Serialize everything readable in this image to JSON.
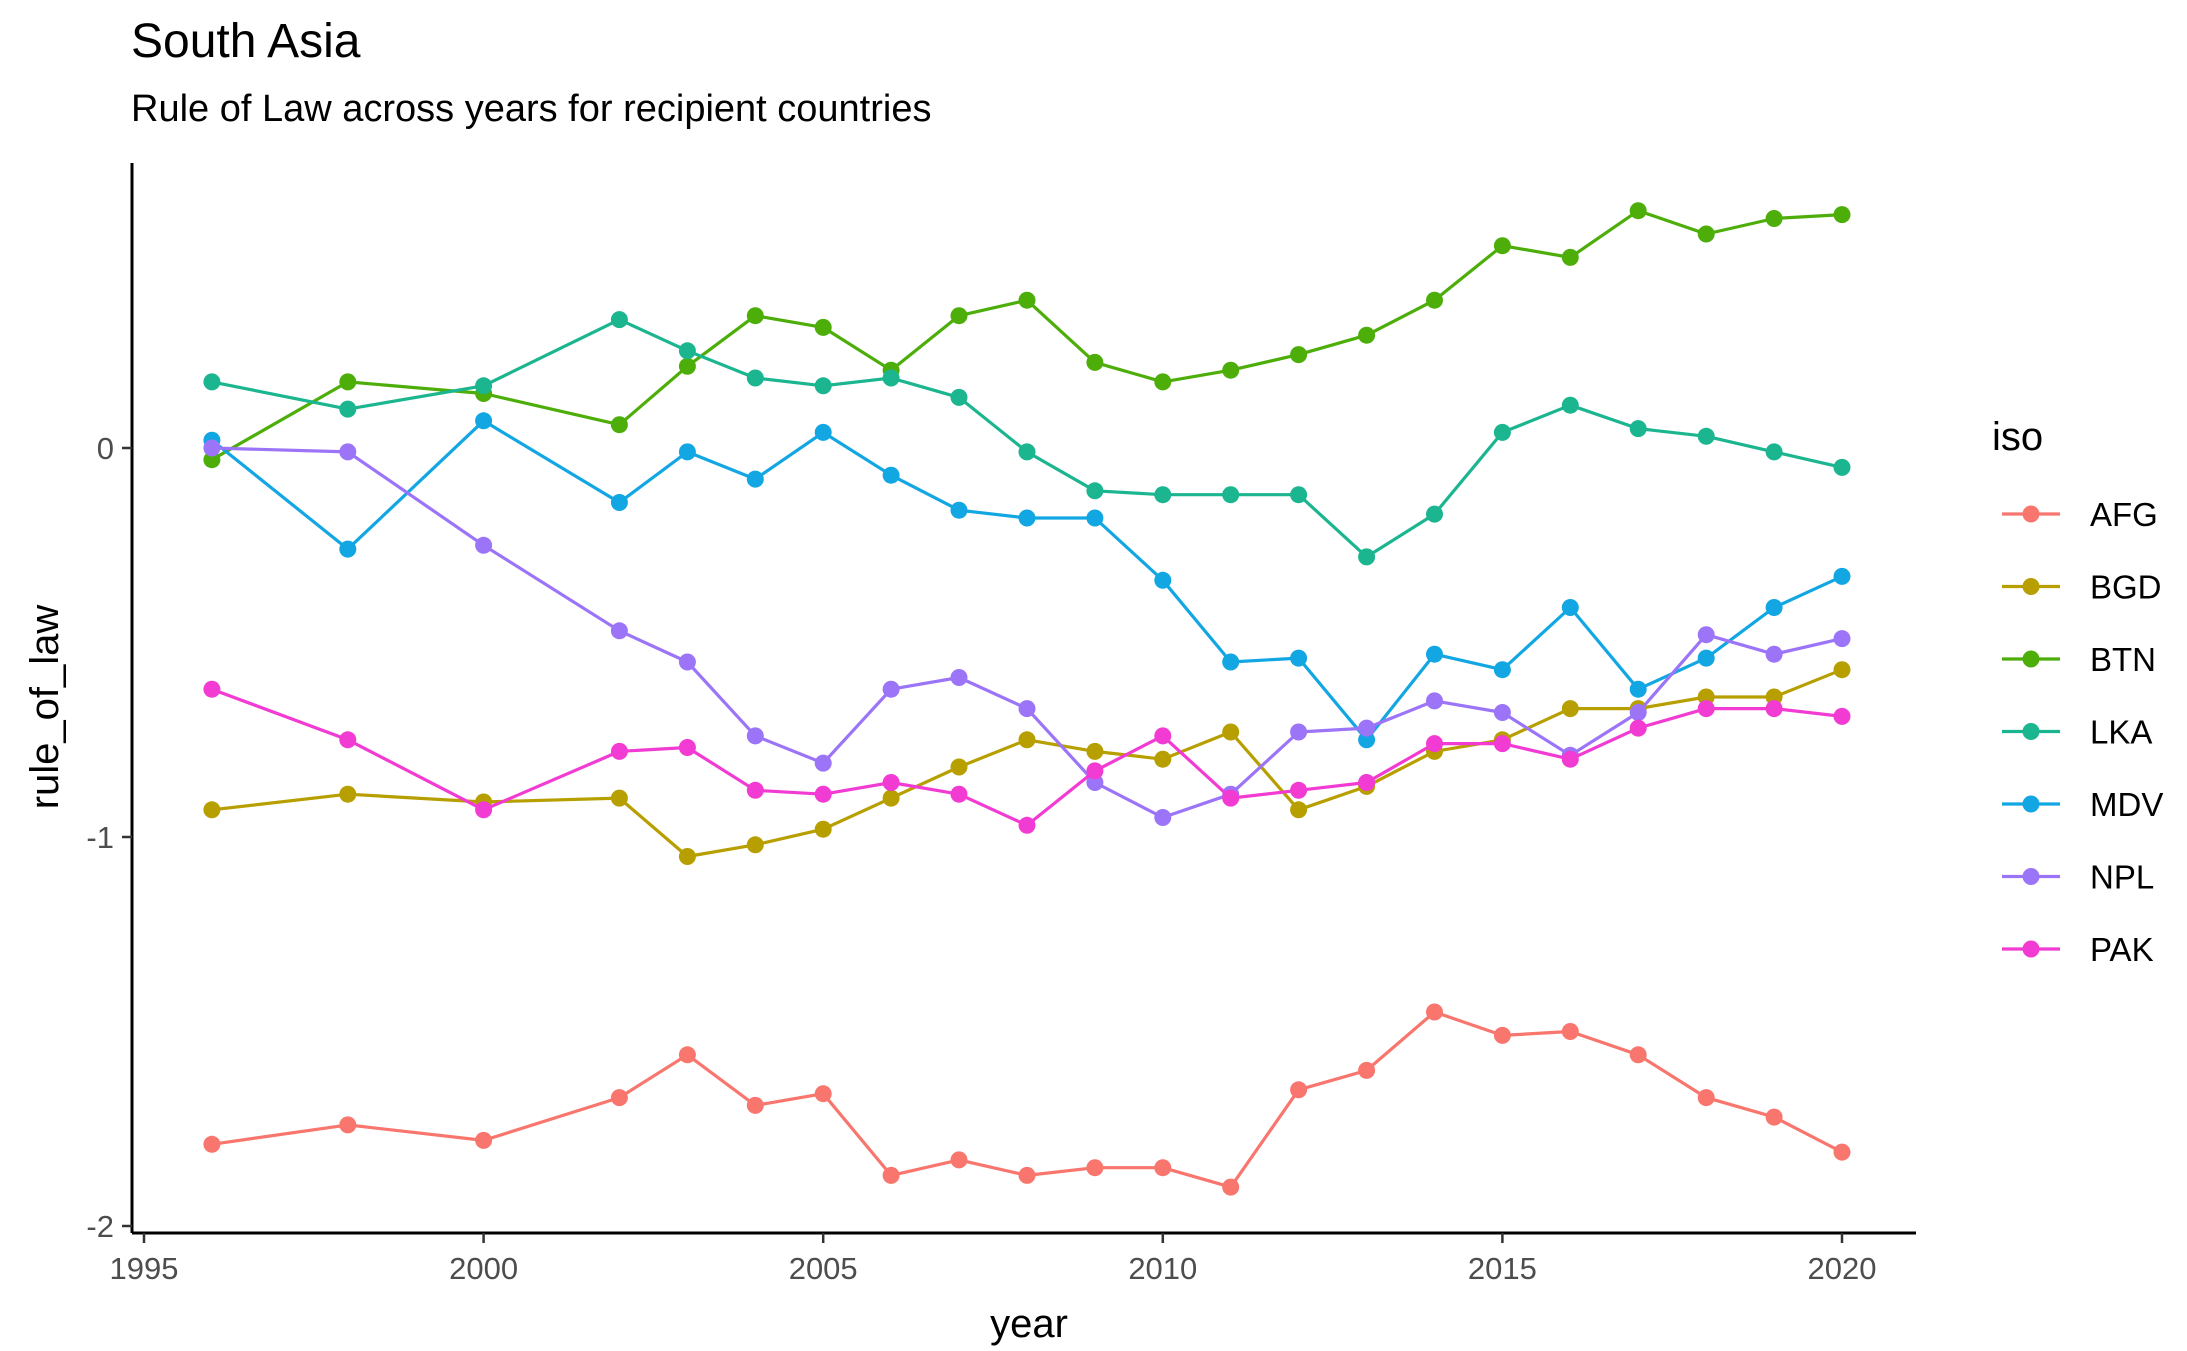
{
  "chart_data": {
    "type": "line",
    "title": "South Asia",
    "subtitle": "Rule of Law across years for recipient countries",
    "xlabel": "year",
    "ylabel": "rule_of_law",
    "xlim": [
      1995,
      2020
    ],
    "ylim": [
      -2,
      0.6
    ],
    "xticks": [
      1995,
      2000,
      2005,
      2010,
      2015,
      2020
    ],
    "yticks": [
      -2,
      -1,
      0
    ],
    "grid": false,
    "legend": {
      "title": "iso",
      "placement": "right"
    },
    "x": [
      1996,
      1998,
      2000,
      2002,
      2003,
      2004,
      2005,
      2006,
      2007,
      2008,
      2009,
      2010,
      2011,
      2012,
      2013,
      2014,
      2015,
      2016,
      2017,
      2018,
      2019,
      2020
    ],
    "series": [
      {
        "name": "AFG",
        "color": "#F8766D",
        "values": [
          -1.79,
          -1.74,
          -1.78,
          -1.67,
          -1.56,
          -1.69,
          -1.66,
          -1.87,
          -1.83,
          -1.87,
          -1.85,
          -1.85,
          -1.9,
          -1.65,
          -1.6,
          -1.45,
          -1.51,
          -1.5,
          -1.56,
          -1.67,
          -1.72,
          -1.81
        ]
      },
      {
        "name": "BGD",
        "color": "#B79F00",
        "values": [
          -0.93,
          -0.89,
          -0.91,
          -0.9,
          -1.05,
          -1.02,
          -0.98,
          -0.9,
          -0.82,
          -0.75,
          -0.78,
          -0.8,
          -0.73,
          -0.93,
          -0.87,
          -0.78,
          -0.75,
          -0.67,
          -0.67,
          -0.64,
          -0.64,
          -0.57
        ]
      },
      {
        "name": "BTN",
        "color": "#4DAE0A",
        "values": [
          -0.03,
          0.17,
          0.14,
          0.06,
          0.21,
          0.34,
          0.31,
          0.2,
          0.34,
          0.38,
          0.22,
          0.17,
          0.2,
          0.24,
          0.29,
          0.38,
          0.52,
          0.49,
          0.61,
          0.55,
          0.59,
          0.6
        ]
      },
      {
        "name": "LKA",
        "color": "#1BB58F",
        "values": [
          0.17,
          0.1,
          0.16,
          0.33,
          0.25,
          0.18,
          0.16,
          0.18,
          0.13,
          -0.01,
          -0.11,
          -0.12,
          -0.12,
          -0.12,
          -0.28,
          -0.17,
          0.04,
          0.11,
          0.05,
          0.03,
          -0.01,
          -0.05
        ]
      },
      {
        "name": "MDV",
        "color": "#12A6E3",
        "values": [
          0.02,
          -0.26,
          0.07,
          -0.14,
          -0.01,
          -0.08,
          0.04,
          -0.07,
          -0.16,
          -0.18,
          -0.18,
          -0.34,
          -0.55,
          -0.54,
          -0.75,
          -0.53,
          -0.57,
          -0.41,
          -0.62,
          -0.54,
          -0.41,
          -0.33
        ]
      },
      {
        "name": "NPL",
        "color": "#9B74F8",
        "values": [
          0.0,
          -0.01,
          -0.25,
          -0.47,
          -0.55,
          -0.74,
          -0.81,
          -0.62,
          -0.59,
          -0.67,
          -0.86,
          -0.95,
          -0.89,
          -0.73,
          -0.72,
          -0.65,
          -0.68,
          -0.79,
          -0.68,
          -0.48,
          -0.53,
          -0.49
        ]
      },
      {
        "name": "PAK",
        "color": "#F23BD3",
        "values": [
          -0.62,
          -0.75,
          -0.93,
          -0.78,
          -0.77,
          -0.88,
          -0.89,
          -0.86,
          -0.89,
          -0.97,
          -0.83,
          -0.74,
          -0.9,
          -0.88,
          -0.86,
          -0.76,
          -0.76,
          -0.8,
          -0.72,
          -0.67,
          -0.67,
          -0.69
        ]
      }
    ]
  }
}
